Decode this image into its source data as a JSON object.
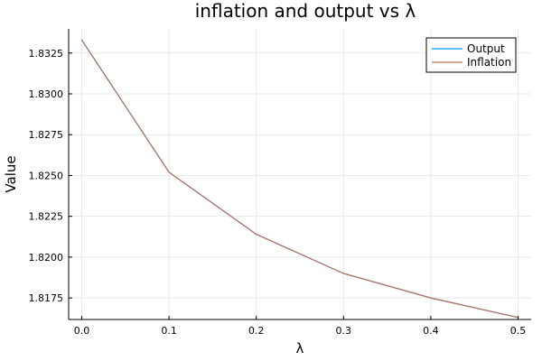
{
  "chart_data": {
    "type": "line",
    "title": "inflation and output vs λ",
    "xlabel": "λ",
    "ylabel": "Value",
    "xlim": [
      -0.015,
      0.515
    ],
    "ylim": [
      1.81618,
      1.83398
    ],
    "x_ticks": [
      "0.0",
      "0.1",
      "0.2",
      "0.3",
      "0.4",
      "0.5"
    ],
    "x_tick_values": [
      0.0,
      0.1,
      0.2,
      0.3,
      0.4,
      0.5
    ],
    "y_ticks": [
      "1.8175",
      "1.8200",
      "1.8225",
      "1.8250",
      "1.8275",
      "1.8300",
      "1.8325"
    ],
    "y_tick_values": [
      1.8175,
      1.82,
      1.8225,
      1.825,
      1.8275,
      1.83,
      1.8325
    ],
    "grid": true,
    "legend_position": "top-right",
    "x": [
      0.0,
      0.1,
      0.2,
      0.3,
      0.4,
      0.5
    ],
    "series": [
      {
        "name": "Output",
        "color": "#009af9",
        "values": [
          1.8333,
          1.8252,
          1.8214,
          1.819,
          1.8175,
          1.8163
        ]
      },
      {
        "name": "Inflation",
        "color": "#b97059",
        "values": [
          1.8333,
          1.8252,
          1.8214,
          1.819,
          1.8175,
          1.8163
        ]
      }
    ]
  }
}
